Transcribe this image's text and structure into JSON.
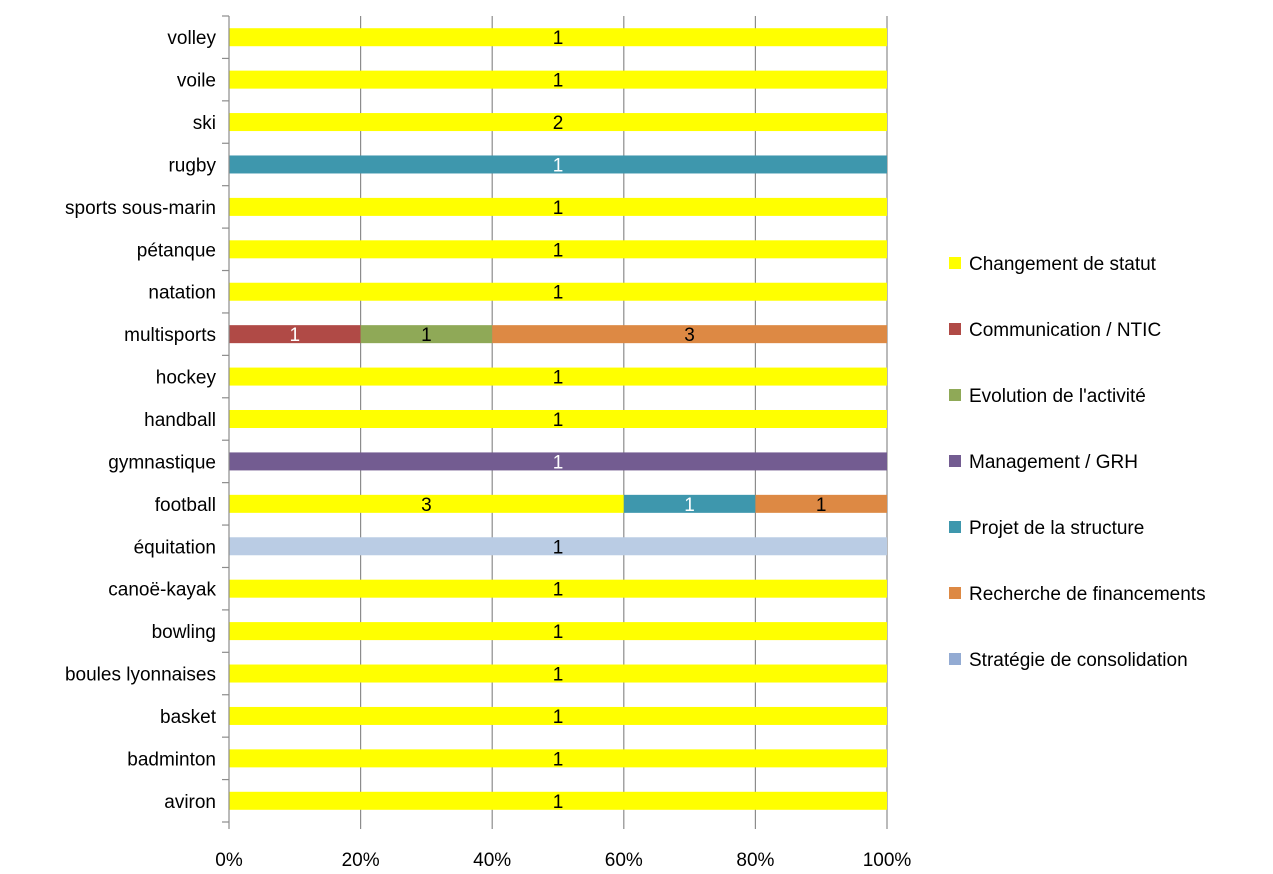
{
  "chart_data": {
    "type": "bar",
    "orientation": "horizontal",
    "stacked": "percent",
    "title": "",
    "xlabel": "",
    "ylabel": "",
    "xlim": [
      0,
      100
    ],
    "x_ticks": [
      "0%",
      "20%",
      "40%",
      "60%",
      "80%",
      "100%"
    ],
    "grid": true,
    "legend_position": "right",
    "categories": [
      "volley",
      "voile",
      "ski",
      "rugby",
      "sports sous-marin",
      "pétanque",
      "natation",
      "multisports",
      "hockey",
      "handball",
      "gymnastique",
      "football",
      "équitation",
      "canoë-kayak",
      "bowling",
      "boules lyonnaises",
      "basket",
      "badminton",
      "aviron"
    ],
    "series": [
      {
        "name": "Changement de statut",
        "color": "#FFFF00",
        "label_color": "#000000",
        "values": [
          1,
          1,
          2,
          0,
          1,
          1,
          1,
          0,
          1,
          1,
          0,
          3,
          0,
          1,
          1,
          1,
          1,
          1,
          1
        ]
      },
      {
        "name": "Communication / NTIC",
        "color": "#B04A46",
        "label_color": "#FFFFFF",
        "values": [
          0,
          0,
          0,
          0,
          0,
          0,
          0,
          1,
          0,
          0,
          0,
          0,
          0,
          0,
          0,
          0,
          0,
          0,
          0
        ]
      },
      {
        "name": "Evolution de l'activité",
        "color": "#8FA957",
        "label_color": "#000000",
        "values": [
          0,
          0,
          0,
          0,
          0,
          0,
          0,
          1,
          0,
          0,
          0,
          0,
          0,
          0,
          0,
          0,
          0,
          0,
          0
        ]
      },
      {
        "name": "Management / GRH",
        "color": "#735C91",
        "label_color": "#FFFFFF",
        "values": [
          0,
          0,
          0,
          0,
          0,
          0,
          0,
          0,
          0,
          0,
          1,
          0,
          0,
          0,
          0,
          0,
          0,
          0,
          0
        ]
      },
      {
        "name": "Projet de la structure",
        "color": "#3E97AD",
        "label_color": "#FFFFFF",
        "values": [
          0,
          0,
          0,
          1,
          0,
          0,
          0,
          0,
          0,
          0,
          0,
          1,
          0,
          0,
          0,
          0,
          0,
          0,
          0
        ]
      },
      {
        "name": "Recherche de financements",
        "color": "#DD8944",
        "label_color": "#000000",
        "values": [
          0,
          0,
          0,
          0,
          0,
          0,
          0,
          3,
          0,
          0,
          0,
          1,
          0,
          0,
          0,
          0,
          0,
          0,
          0
        ]
      },
      {
        "name": "Stratégie de consolidation",
        "color": "#BACCE4",
        "legend_color": "#93ABD3",
        "label_color": "#000000",
        "values": [
          0,
          0,
          0,
          0,
          0,
          0,
          0,
          0,
          0,
          0,
          0,
          0,
          1,
          0,
          0,
          0,
          0,
          0,
          0
        ]
      }
    ]
  }
}
